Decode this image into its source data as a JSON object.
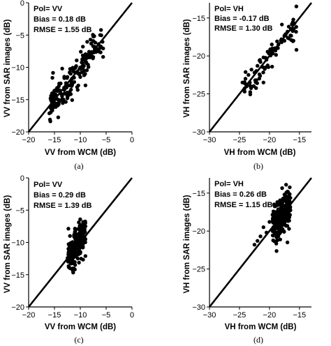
{
  "chart_data": [
    {
      "panel": "(a)",
      "type": "scatter",
      "xlabel": "VV from WCM (dB)",
      "ylabel": "VV from SAR images (dB)",
      "xlim": [
        -20,
        0
      ],
      "ylim": [
        -20,
        0
      ],
      "xticks": [
        -20,
        -15,
        -10,
        -5,
        0
      ],
      "yticks": [
        -20,
        -15,
        -10,
        -5,
        0
      ],
      "annotations": [
        "Pol= VV",
        "Bias = 0.18 dB",
        "RMSE = 1.55 dB"
      ],
      "reference_line": "1:1",
      "seed": 11,
      "cluster": {
        "x_range": [
          -16,
          -5.5
        ],
        "y_mean_offset": -0.2,
        "y_sd": 1.3,
        "n": 150
      },
      "points": [
        [
          -15.5,
          -15.8
        ],
        [
          -15.8,
          -16.2
        ],
        [
          -14.8,
          -14.2
        ],
        [
          -14.5,
          -13.2
        ],
        [
          -13.8,
          -12.5
        ],
        [
          -13.0,
          -13.3
        ],
        [
          -12.5,
          -11.5
        ],
        [
          -12.0,
          -12.8
        ],
        [
          -11.8,
          -10.4
        ],
        [
          -11.2,
          -11.6
        ],
        [
          -10.8,
          -9.8
        ],
        [
          -10.5,
          -10.9
        ],
        [
          -10.0,
          -11.5
        ],
        [
          -9.5,
          -10.2
        ],
        [
          -9.0,
          -8.5
        ],
        [
          -8.5,
          -9.6
        ],
        [
          -8.0,
          -7.8
        ],
        [
          -7.5,
          -8.4
        ],
        [
          -7.0,
          -7.0
        ],
        [
          -6.5,
          -6.4
        ],
        [
          -6.0,
          -6.8
        ],
        [
          -12.5,
          -14.8
        ],
        [
          -10.5,
          -13.5
        ],
        [
          -13.5,
          -10.2
        ],
        [
          -9.5,
          -6.8
        ],
        [
          -9.0,
          -12.8
        ]
      ]
    },
    {
      "panel": "(b)",
      "type": "scatter",
      "xlabel": "VH from WCM (dB)",
      "ylabel": "VH from SAR images (dB)",
      "xlim": [
        -30,
        -13
      ],
      "ylim": [
        -30,
        -13
      ],
      "xticks": [
        -30,
        -25,
        -20,
        -15
      ],
      "yticks": [
        -30,
        -25,
        -20,
        -15
      ],
      "annotations": [
        "Pol= VH",
        "Bias = -0.17 dB",
        "RMSE = 1.30 dB"
      ],
      "reference_line": "1:1",
      "seed": 23,
      "cluster": {
        "x_range": [
          -24.5,
          -15.5
        ],
        "y_mean_offset": 0,
        "y_sd": 0.9,
        "n": 70
      },
      "points": [
        [
          -24.5,
          -23.5
        ],
        [
          -24.0,
          -23.0
        ],
        [
          -23.5,
          -22.5
        ],
        [
          -23.0,
          -21.8
        ],
        [
          -22.5,
          -22.2
        ],
        [
          -22.0,
          -21.3
        ],
        [
          -21.5,
          -20.8
        ],
        [
          -21.0,
          -20.2
        ],
        [
          -20.5,
          -20.5
        ],
        [
          -20.0,
          -19.7
        ],
        [
          -19.5,
          -19.0
        ],
        [
          -19.0,
          -19.3
        ],
        [
          -18.5,
          -18.5
        ],
        [
          -18.0,
          -17.8
        ],
        [
          -17.5,
          -18.0
        ],
        [
          -17.0,
          -16.8
        ],
        [
          -16.5,
          -17.3
        ],
        [
          -16.0,
          -18.0
        ],
        [
          -15.5,
          -19.2
        ],
        [
          -21.0,
          -23.5
        ]
      ]
    },
    {
      "panel": "(c)",
      "type": "scatter",
      "xlabel": "VV from WCM (dB)",
      "ylabel": "VV from SAR images (dB)",
      "xlim": [
        -20,
        0
      ],
      "ylim": [
        -20,
        0
      ],
      "xticks": [
        -20,
        -15,
        -10,
        -5,
        0
      ],
      "yticks": [
        -20,
        -15,
        -10,
        -5,
        0
      ],
      "annotations": [
        "Pol= VV",
        "Bias = 0.29 dB",
        "RMSE = 1.39 dB"
      ],
      "reference_line": "1:1",
      "seed": 37,
      "cluster": {
        "x_range": [
          -12.5,
          -9
        ],
        "y_mean_offset": 0.2,
        "y_sd": 1.4,
        "n": 190
      },
      "points": [
        [
          -12.0,
          -14.0
        ],
        [
          -11.5,
          -14.3
        ],
        [
          -11.0,
          -13.5
        ],
        [
          -10.5,
          -12.5
        ],
        [
          -10.0,
          -11.5
        ],
        [
          -9.5,
          -10.8
        ],
        [
          -9.0,
          -9.5
        ],
        [
          -9.0,
          -7.5
        ],
        [
          -9.5,
          -7.3
        ],
        [
          -10.0,
          -8.2
        ],
        [
          -12.3,
          -11.0
        ],
        [
          -12.0,
          -9.0
        ],
        [
          -11.0,
          -8.0
        ]
      ]
    },
    {
      "panel": "(d)",
      "type": "scatter",
      "xlabel": "VH from WCM (dB)",
      "ylabel": "VH from SAR images (dB)",
      "xlim": [
        -30,
        -13
      ],
      "ylim": [
        -30,
        -13
      ],
      "xticks": [
        -30,
        -25,
        -20,
        -15
      ],
      "yticks": [
        -30,
        -25,
        -20,
        -15
      ],
      "annotations": [
        "Pol= VH",
        "Bias = 0.26 dB",
        "RMSE = 1.15 dB"
      ],
      "reference_line": "1:1",
      "seed": 51,
      "cluster": {
        "x_range": [
          -19.5,
          -16.5
        ],
        "y_mean_offset": 0,
        "y_sd": 1.2,
        "n": 280
      },
      "points": [
        [
          -22.5,
          -21.8
        ],
        [
          -22.0,
          -21.3
        ],
        [
          -21.5,
          -20.7
        ],
        [
          -21.0,
          -19.5
        ],
        [
          -20.5,
          -20.2
        ],
        [
          -20.0,
          -18.8
        ],
        [
          -17.5,
          -15.2
        ],
        [
          -17.0,
          -14.8
        ],
        [
          -18.0,
          -16.0
        ],
        [
          -17.0,
          -21.5
        ]
      ]
    }
  ]
}
